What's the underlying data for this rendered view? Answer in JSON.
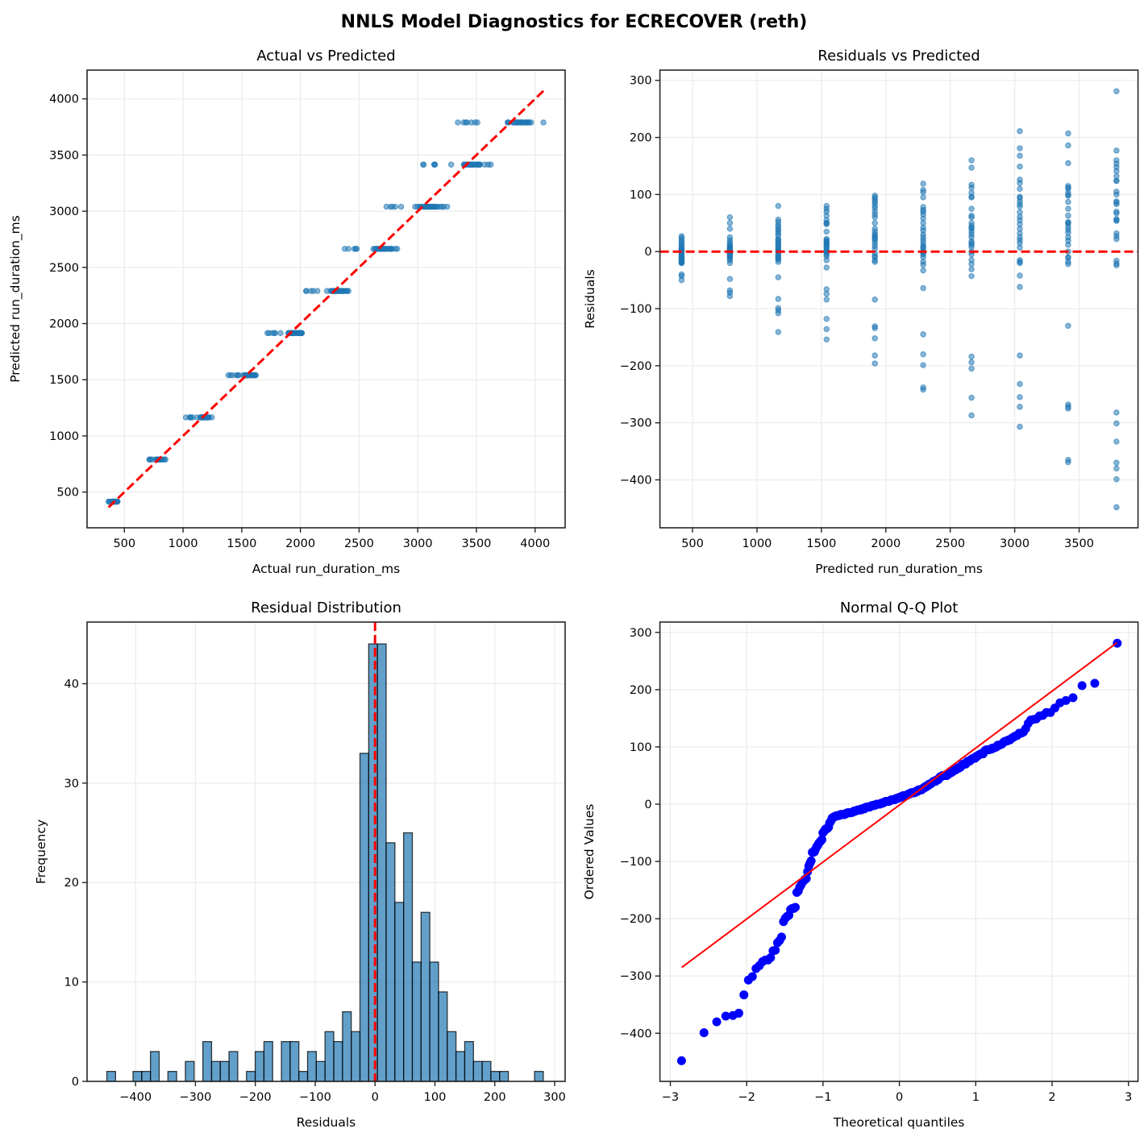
{
  "title": "NNLS Model Diagnostics for ECRECOVER (reth)",
  "colors": {
    "scatter": "#1f77b4",
    "hist_fill": "#1f77b4",
    "reference": "#ff0000",
    "qq_points": "#0000ff",
    "axis": "#262626",
    "grid": "#ebebeb"
  },
  "chart_data": [
    {
      "id": "actual_vs_predicted",
      "type": "scatter",
      "title": "Actual vs Predicted",
      "xlabel": "Actual run_duration_ms",
      "ylabel": "Predicted run_duration_ms",
      "xlim": [
        182,
        4256
      ],
      "ylim": [
        182,
        4256
      ],
      "xticks": [
        500,
        1000,
        1500,
        2000,
        2500,
        3000,
        3500,
        4000
      ],
      "yticks": [
        500,
        1000,
        1500,
        2000,
        2500,
        3000,
        3500,
        4000
      ],
      "grid": true,
      "reference_line": "y = x (red dashed)",
      "note_points": "x = predicted + residual, y = predicted level (see groups)"
    },
    {
      "id": "residuals_vs_predicted",
      "type": "scatter",
      "title": "Residuals vs Predicted",
      "xlabel": "Predicted run_duration_ms",
      "ylabel": "Residuals",
      "xlim": [
        247,
        3957
      ],
      "ylim": [
        -484,
        318
      ],
      "xticks": [
        500,
        1000,
        1500,
        2000,
        2500,
        3000,
        3500
      ],
      "yticks": [
        -400,
        -300,
        -200,
        -100,
        0,
        100,
        200,
        300
      ],
      "grid": true,
      "reference_line": "y = 0 (red dashed)",
      "groups": [
        {
          "predicted": 415,
          "residuals": [
            27,
            24,
            20,
            17,
            14,
            11,
            8,
            6,
            4,
            2,
            0,
            -1,
            -3,
            -5,
            -6,
            -8,
            -10,
            -11,
            -12,
            -13,
            -14,
            -15,
            -16,
            -17,
            -18,
            -19,
            -20,
            -20,
            -40,
            -43,
            -50,
            5
          ]
        },
        {
          "predicted": 790,
          "residuals": [
            60,
            50,
            40,
            25,
            20,
            16,
            13,
            10,
            8,
            6,
            5,
            4,
            2,
            1,
            0,
            -1,
            -2,
            -3,
            -4,
            -5,
            -6,
            -8,
            -10,
            -12,
            -15,
            -20,
            -48,
            -68,
            -72,
            -78,
            3,
            7
          ]
        },
        {
          "predicted": 1165,
          "residuals": [
            80,
            56,
            52,
            47,
            43,
            39,
            36,
            32,
            20,
            18,
            15,
            12,
            8,
            5,
            3,
            1,
            -2,
            -5,
            -8,
            -10,
            -12,
            -14,
            -18,
            -45,
            -83,
            -99,
            -103,
            -108,
            -141,
            9,
            22,
            28
          ]
        },
        {
          "predicted": 1540,
          "residuals": [
            80,
            75,
            70,
            63,
            55,
            50,
            50,
            35,
            20,
            18,
            15,
            12,
            10,
            8,
            2,
            0,
            -2,
            -5,
            -15,
            -28,
            -66,
            -74,
            -84,
            -118,
            -136,
            -154,
            14,
            16,
            -8,
            5,
            22,
            48
          ]
        },
        {
          "predicted": 1915,
          "residuals": [
            98,
            95,
            92,
            88,
            85,
            80,
            76,
            70,
            60,
            50,
            35,
            30,
            25,
            20,
            15,
            10,
            5,
            -3,
            -10,
            -15,
            -18,
            -84,
            -131,
            -134,
            -152,
            -182,
            -196,
            22,
            28,
            40,
            65,
            -8
          ]
        },
        {
          "predicted": 2290,
          "residuals": [
            119,
            108,
            104,
            95,
            78,
            70,
            65,
            58,
            50,
            42,
            37,
            30,
            20,
            10,
            8,
            5,
            -5,
            -10,
            -18,
            -33,
            -64,
            -145,
            -180,
            -199,
            -238,
            -242,
            25,
            15,
            0,
            -2,
            73,
            -23
          ]
        },
        {
          "predicted": 2665,
          "residuals": [
            160,
            147,
            117,
            112,
            103,
            96,
            95,
            75,
            63,
            50,
            45,
            42,
            40,
            35,
            30,
            18,
            15,
            12,
            8,
            0,
            -5,
            -15,
            -31,
            -43,
            -184,
            -194,
            -205,
            -256,
            -287,
            25,
            60,
            -22
          ]
        },
        {
          "predicted": 3040,
          "residuals": [
            211,
            181,
            168,
            149,
            126,
            120,
            110,
            96,
            94,
            83,
            79,
            69,
            61,
            55,
            48,
            40,
            32,
            25,
            20,
            15,
            7,
            -15,
            -20,
            -42,
            -62,
            -182,
            -232,
            -255,
            -272,
            -307,
            -18,
            88
          ]
        },
        {
          "predicted": 3415,
          "residuals": [
            207,
            186,
            155,
            112,
            110,
            103,
            99,
            98,
            87,
            75,
            63,
            52,
            49,
            43,
            38,
            33,
            25,
            19,
            12,
            0,
            -10,
            -18,
            -22,
            -130,
            -268,
            -272,
            -275,
            -365,
            -369,
            -11,
            115,
            50
          ]
        },
        {
          "predicted": 3790,
          "residuals": [
            281,
            177,
            160,
            154,
            148,
            141,
            132,
            124,
            124,
            105,
            88,
            86,
            83,
            67,
            57,
            55,
            54,
            32,
            27,
            22,
            -16,
            -21,
            -24,
            -282,
            -301,
            -333,
            -370,
            -380,
            -399,
            -448,
            70,
            100
          ]
        }
      ]
    },
    {
      "id": "residual_distribution",
      "type": "bar",
      "title": "Residual Distribution",
      "xlabel": "Residuals",
      "ylabel": "Frequency",
      "xlim": [
        -481,
        317.5
      ],
      "ylim": [
        0,
        46.2
      ],
      "xticks": [
        -400,
        -300,
        -200,
        -100,
        0,
        100,
        200,
        300
      ],
      "yticks": [
        0,
        10,
        20,
        30,
        40
      ],
      "grid": true,
      "bin_range": [
        -448,
        281
      ],
      "counts": [
        1,
        0,
        0,
        1,
        1,
        3,
        0,
        1,
        0,
        2,
        0,
        4,
        2,
        2,
        3,
        0,
        1,
        3,
        4,
        0,
        4,
        4,
        1,
        3,
        2,
        5,
        4,
        7,
        5,
        33,
        44,
        44,
        24,
        18,
        25,
        12,
        17,
        12,
        9,
        5,
        3,
        4,
        2,
        2,
        1,
        1,
        0,
        0,
        0,
        1
      ],
      "reference_line": "x = 0 (red dashed)"
    },
    {
      "id": "normal_qq",
      "type": "scatter",
      "title": "Normal Q-Q Plot",
      "xlabel": "Theoretical quantiles",
      "ylabel": "Ordered Values",
      "xlim": [
        -3.136,
        3.125
      ],
      "ylim": [
        -484,
        318
      ],
      "xticks": [
        -3,
        -2,
        -1,
        0,
        1,
        2,
        3
      ],
      "yticks": [
        -400,
        -300,
        -200,
        -100,
        0,
        100,
        200,
        300
      ],
      "grid": true,
      "fit_line": {
        "x": [
          -2.85,
          2.85
        ],
        "y": [
          -285,
          282
        ]
      }
    }
  ]
}
